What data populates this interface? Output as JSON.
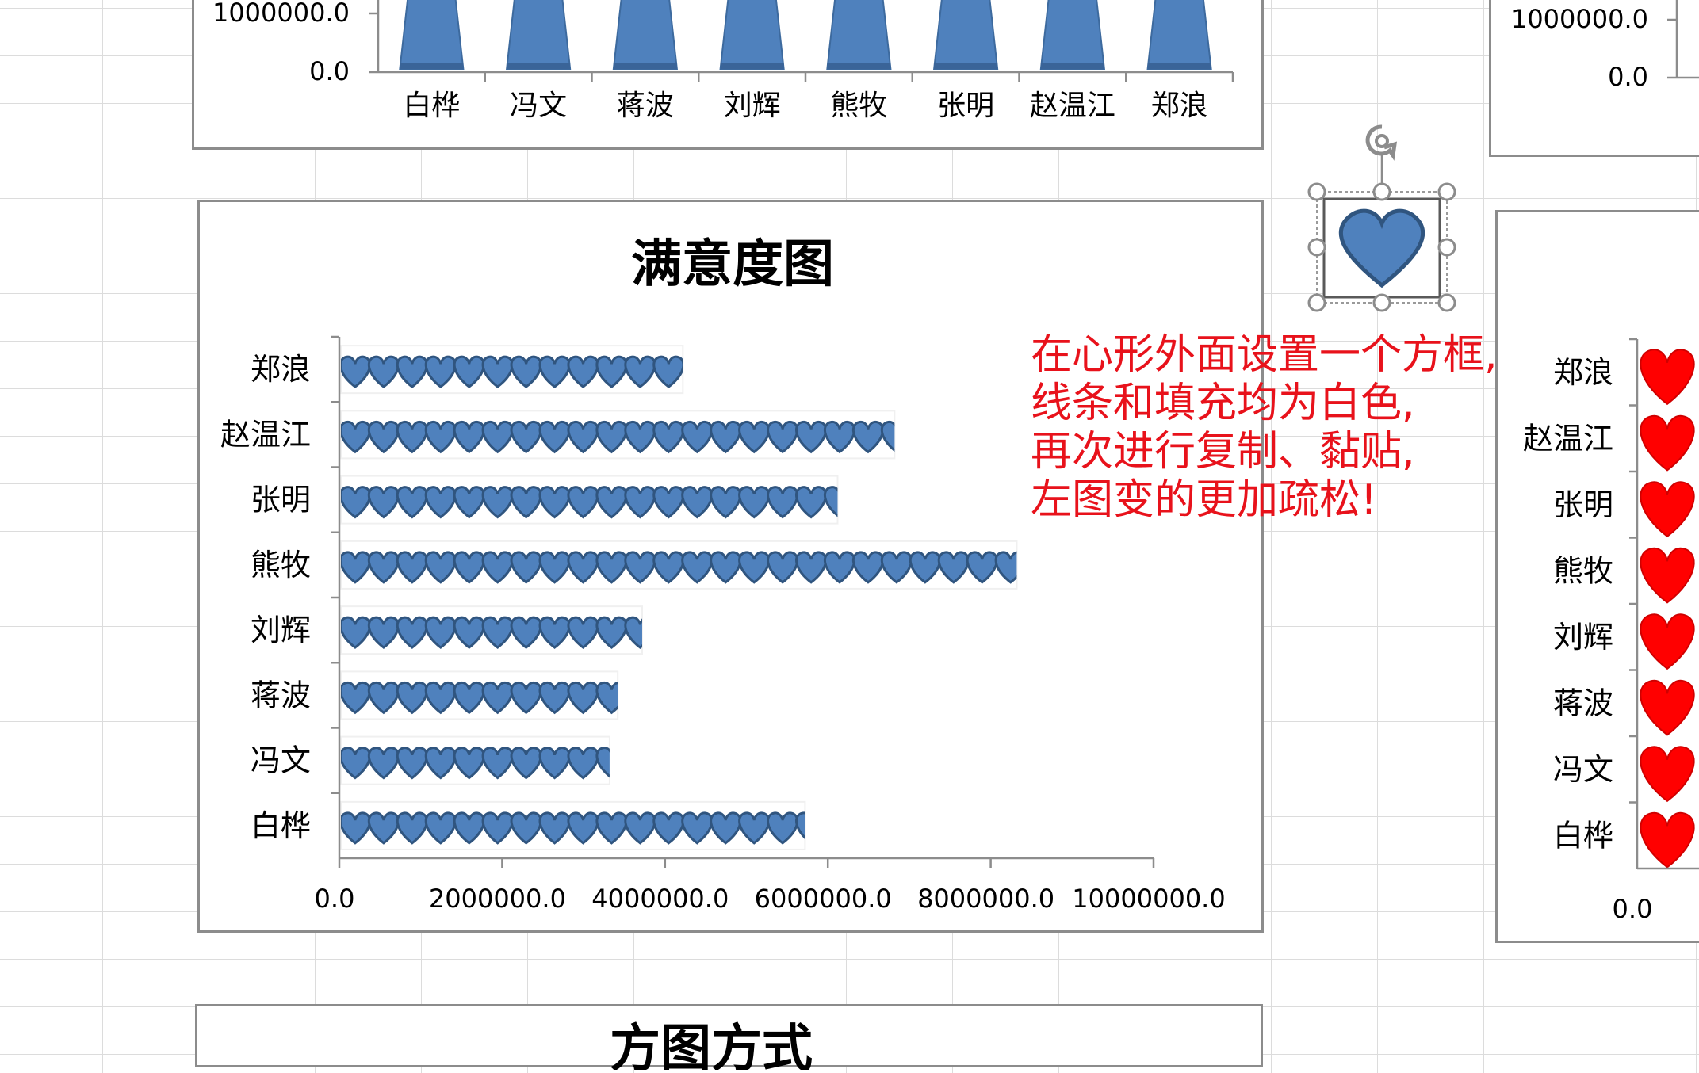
{
  "top_chart": {
    "categories": [
      "白桦",
      "冯文",
      "蒋波",
      "刘辉",
      "熊牧",
      "张明",
      "赵温江",
      "郑浪"
    ],
    "y_ticks": [
      "0.0",
      "1000000.0"
    ]
  },
  "chart_data": [
    {
      "type": "bar",
      "orientation": "horizontal",
      "title": "满意度图",
      "categories": [
        "郑浪",
        "赵温江",
        "张明",
        "熊牧",
        "刘辉",
        "蒋波",
        "冯文",
        "白桦"
      ],
      "values": [
        4200000,
        6800000,
        6100000,
        8300000,
        3700000,
        3400000,
        3300000,
        5700000
      ],
      "marker": "heart-icon",
      "marker_color": "#4f81bd",
      "x_ticks": [
        "0.0",
        "2000000.0",
        "4000000.0",
        "6000000.0",
        "8000000.0",
        "10000000.0"
      ],
      "xlim": [
        0,
        10000000
      ]
    },
    {
      "type": "bar",
      "orientation": "horizontal",
      "categories": [
        "郑浪",
        "赵温江",
        "张明",
        "熊牧",
        "刘辉",
        "蒋波",
        "冯文",
        "白桦"
      ],
      "marker": "heart-icon",
      "marker_color": "#ff0000",
      "x_ticks": [
        "0.0"
      ]
    }
  ],
  "top_right_chart": {
    "y_ticks": [
      "0.0",
      "1000000.0"
    ]
  },
  "bottom_chart": {
    "title_fragment": "方图方式"
  },
  "annotation": {
    "lines": [
      "在心形外面设置一个方框,",
      "线条和填充均为白色,",
      "再次进行复制、黏贴,",
      "左图变的更加疏松!"
    ]
  },
  "colors": {
    "bar_blue": "#4f81bd",
    "heart_red": "#ff0000",
    "annotation_red": "#e8121b"
  }
}
